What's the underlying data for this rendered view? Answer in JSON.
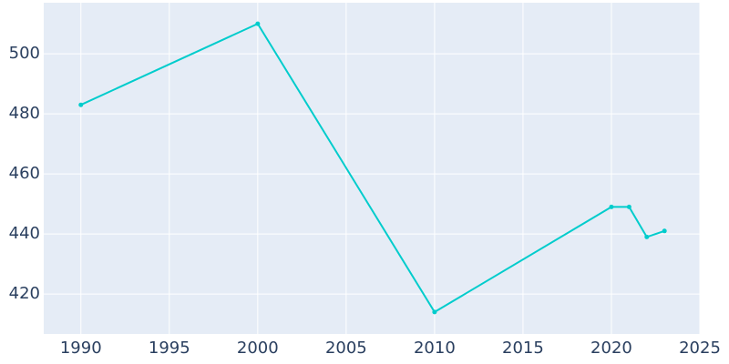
{
  "chart_data": {
    "type": "line",
    "x": [
      1990,
      2000,
      2010,
      2020,
      2021,
      2022,
      2023
    ],
    "series": [
      {
        "color": "#00cccc",
        "values": [
          483,
          510,
          414,
          449,
          449,
          439,
          441
        ]
      }
    ],
    "xlim": [
      1987.9,
      2025
    ],
    "xticks": [
      1990,
      1995,
      2000,
      2005,
      2010,
      2015,
      2020,
      2025
    ],
    "ylim": [
      406.7,
      517
    ],
    "yticks": [
      420,
      440,
      460,
      480,
      500
    ],
    "grid": true
  }
}
